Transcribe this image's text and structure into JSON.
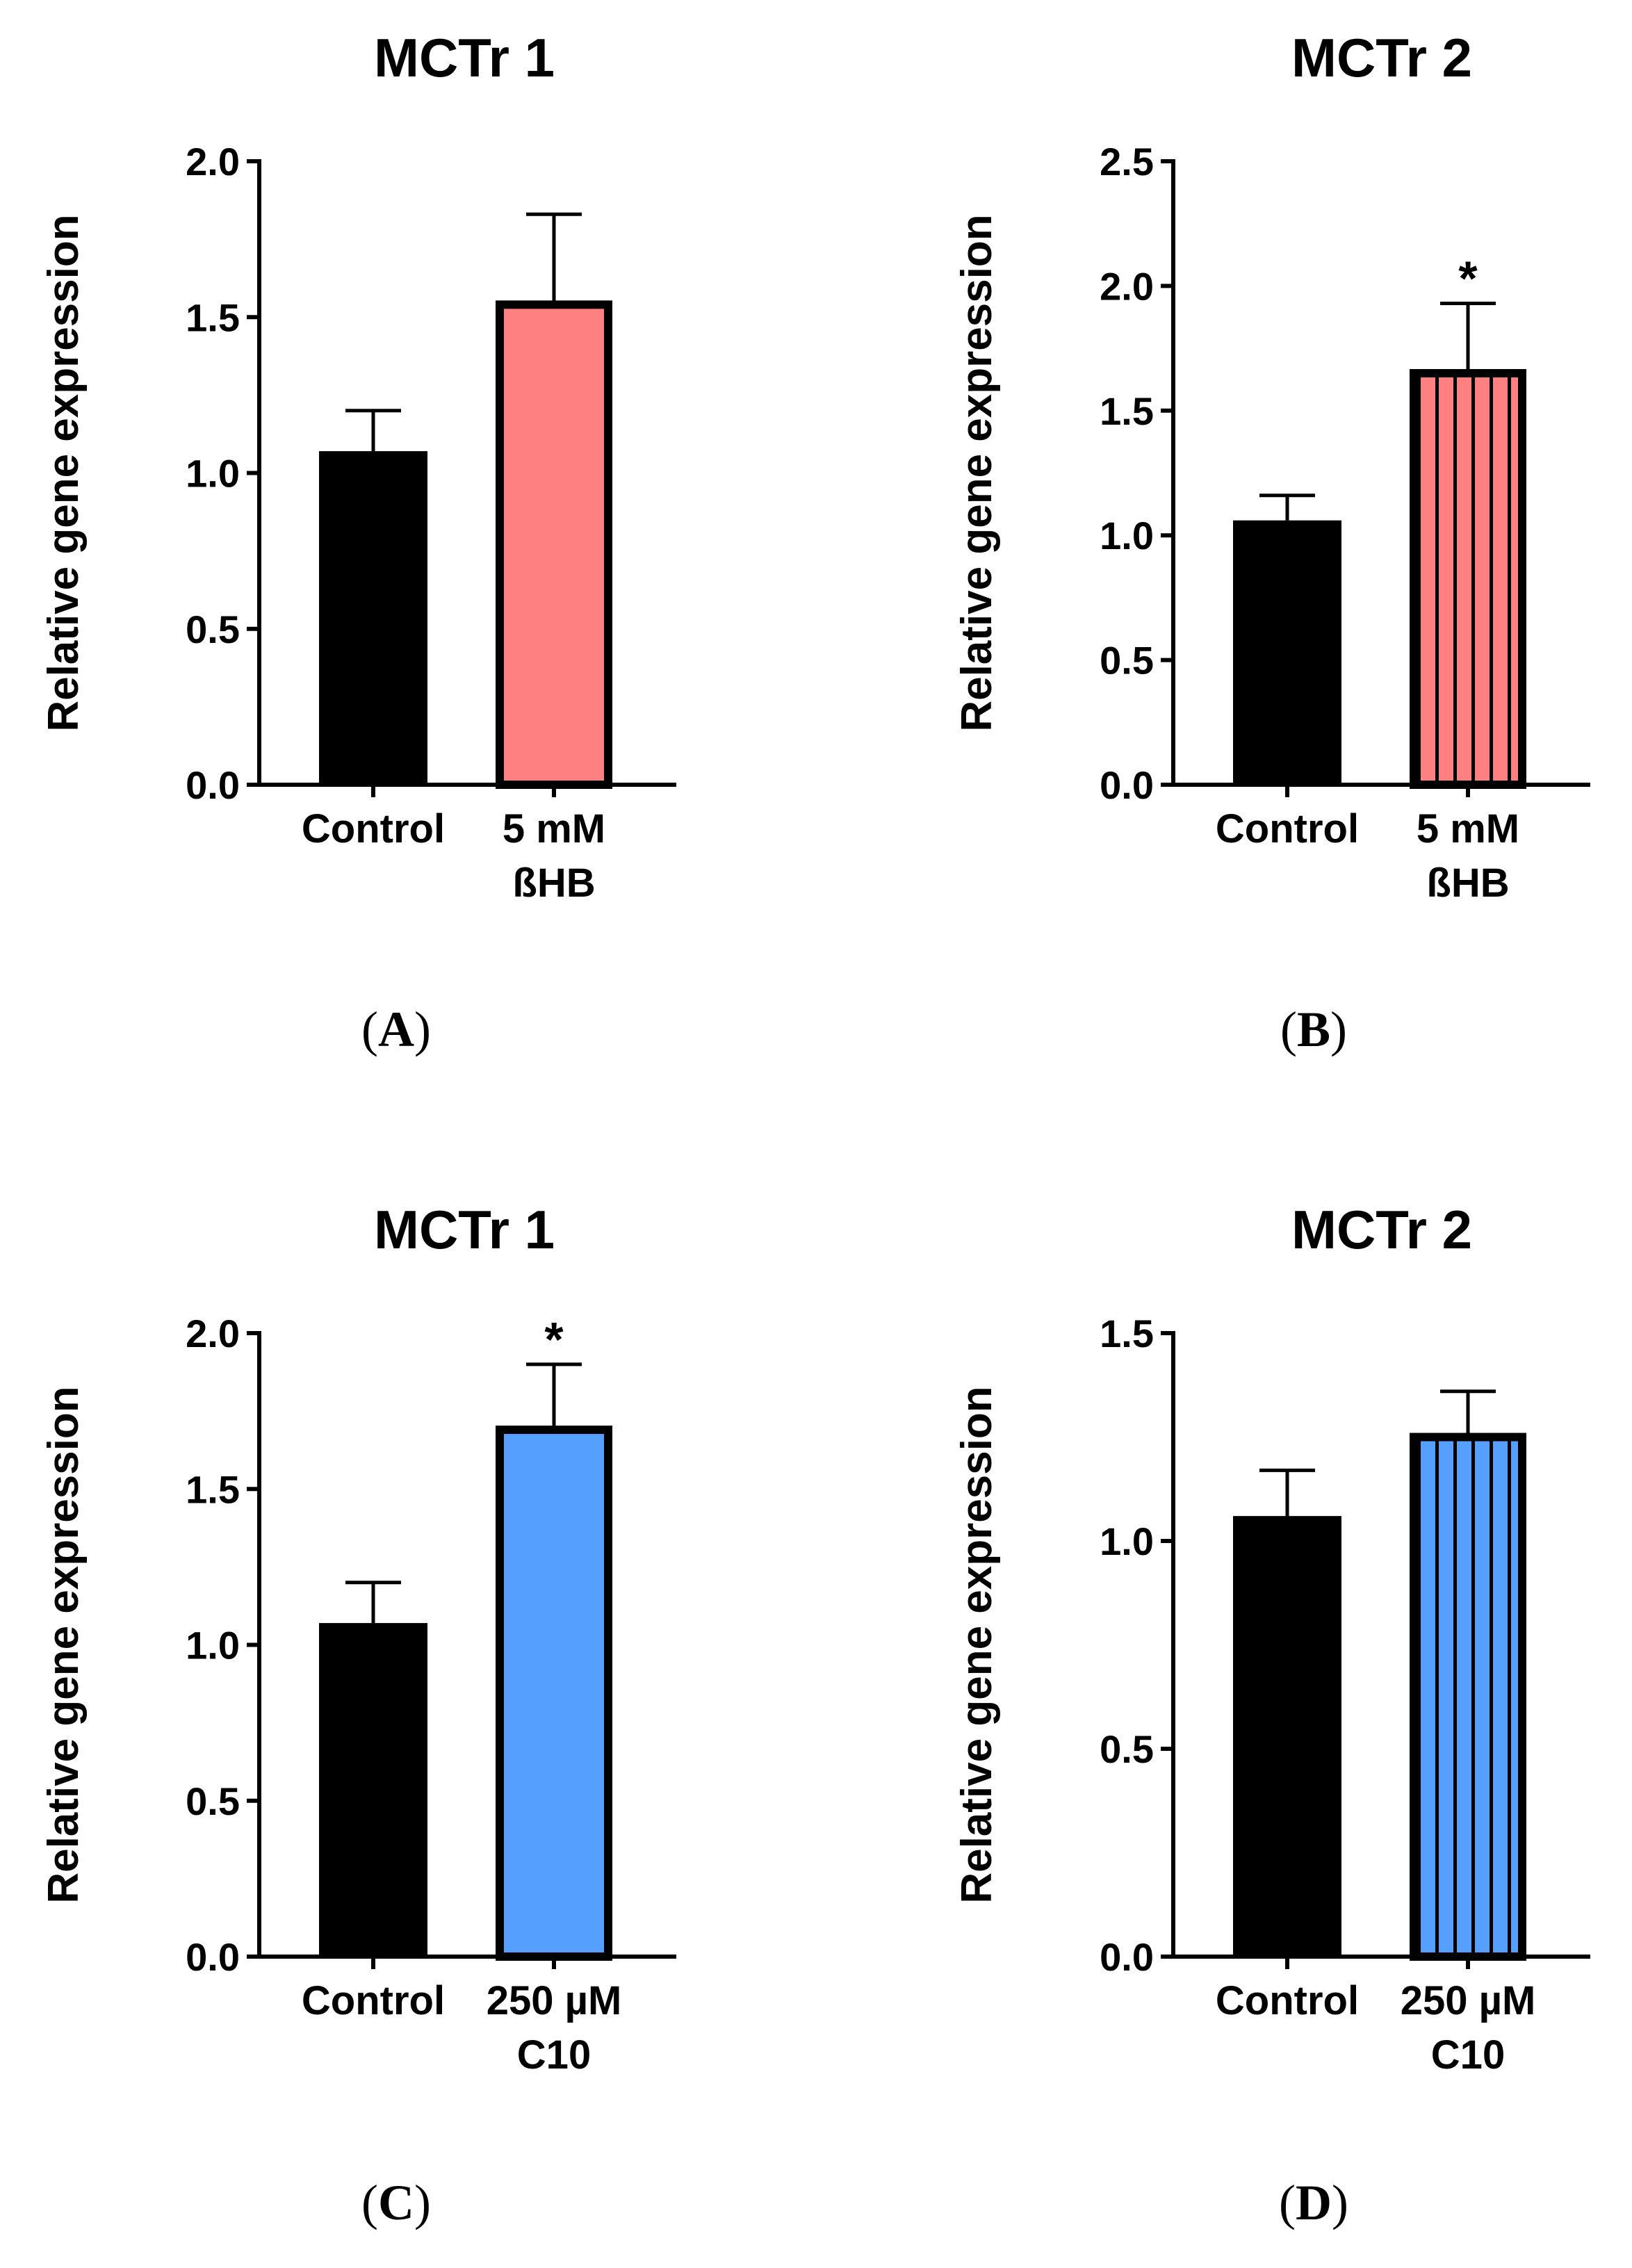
{
  "chart_data": [
    {
      "panel": "A",
      "type": "bar",
      "title": "MCTr 1",
      "ylabel": "Relative gene expression",
      "xlabel": "",
      "ylim": [
        0,
        2.0
      ],
      "yticks": [
        "0.0",
        "0.5",
        "1.0",
        "1.5",
        "2.0"
      ],
      "categories": [
        [
          "Control"
        ],
        [
          "5 mM",
          "ßHB"
        ]
      ],
      "values": [
        1.07,
        1.54
      ],
      "errors": [
        0.13,
        0.29
      ],
      "colors": [
        "#000000",
        "#ff8080"
      ],
      "pattern": [
        false,
        false
      ],
      "significance": [
        "",
        ""
      ]
    },
    {
      "panel": "B",
      "type": "bar",
      "title": "MCTr 2",
      "ylabel": "Relative gene expression",
      "xlabel": "",
      "ylim": [
        0,
        2.5
      ],
      "yticks": [
        "0.0",
        "0.5",
        "1.0",
        "1.5",
        "2.0",
        "2.5"
      ],
      "categories": [
        [
          "Control"
        ],
        [
          "5 mM",
          "ßHB"
        ]
      ],
      "values": [
        1.06,
        1.65
      ],
      "errors": [
        0.1,
        0.28
      ],
      "colors": [
        "#000000",
        "#ff8080"
      ],
      "pattern": [
        false,
        true
      ],
      "significance": [
        "",
        "*"
      ]
    },
    {
      "panel": "C",
      "type": "bar",
      "title": "MCTr 1",
      "ylabel": "Relative gene expression",
      "xlabel": "",
      "ylim": [
        0,
        2.0
      ],
      "yticks": [
        "0.0",
        "0.5",
        "1.0",
        "1.5",
        "2.0"
      ],
      "categories": [
        [
          "Control"
        ],
        [
          "250 µM",
          "C10"
        ]
      ],
      "values": [
        1.07,
        1.69
      ],
      "errors": [
        0.13,
        0.21
      ],
      "colors": [
        "#000000",
        "#55a0ff"
      ],
      "pattern": [
        false,
        false
      ],
      "significance": [
        "",
        "*"
      ]
    },
    {
      "panel": "D",
      "type": "bar",
      "title": "MCTr 2",
      "ylabel": "Relative gene expression",
      "xlabel": "",
      "ylim": [
        0,
        1.5
      ],
      "yticks": [
        "0.0",
        "0.5",
        "1.0",
        "1.5"
      ],
      "categories": [
        [
          "Control"
        ],
        [
          "250 µM",
          "C10"
        ]
      ],
      "values": [
        1.06,
        1.25
      ],
      "errors": [
        0.11,
        0.11
      ],
      "colors": [
        "#000000",
        "#55a0ff"
      ],
      "pattern": [
        false,
        true
      ],
      "significance": [
        "",
        ""
      ]
    }
  ]
}
